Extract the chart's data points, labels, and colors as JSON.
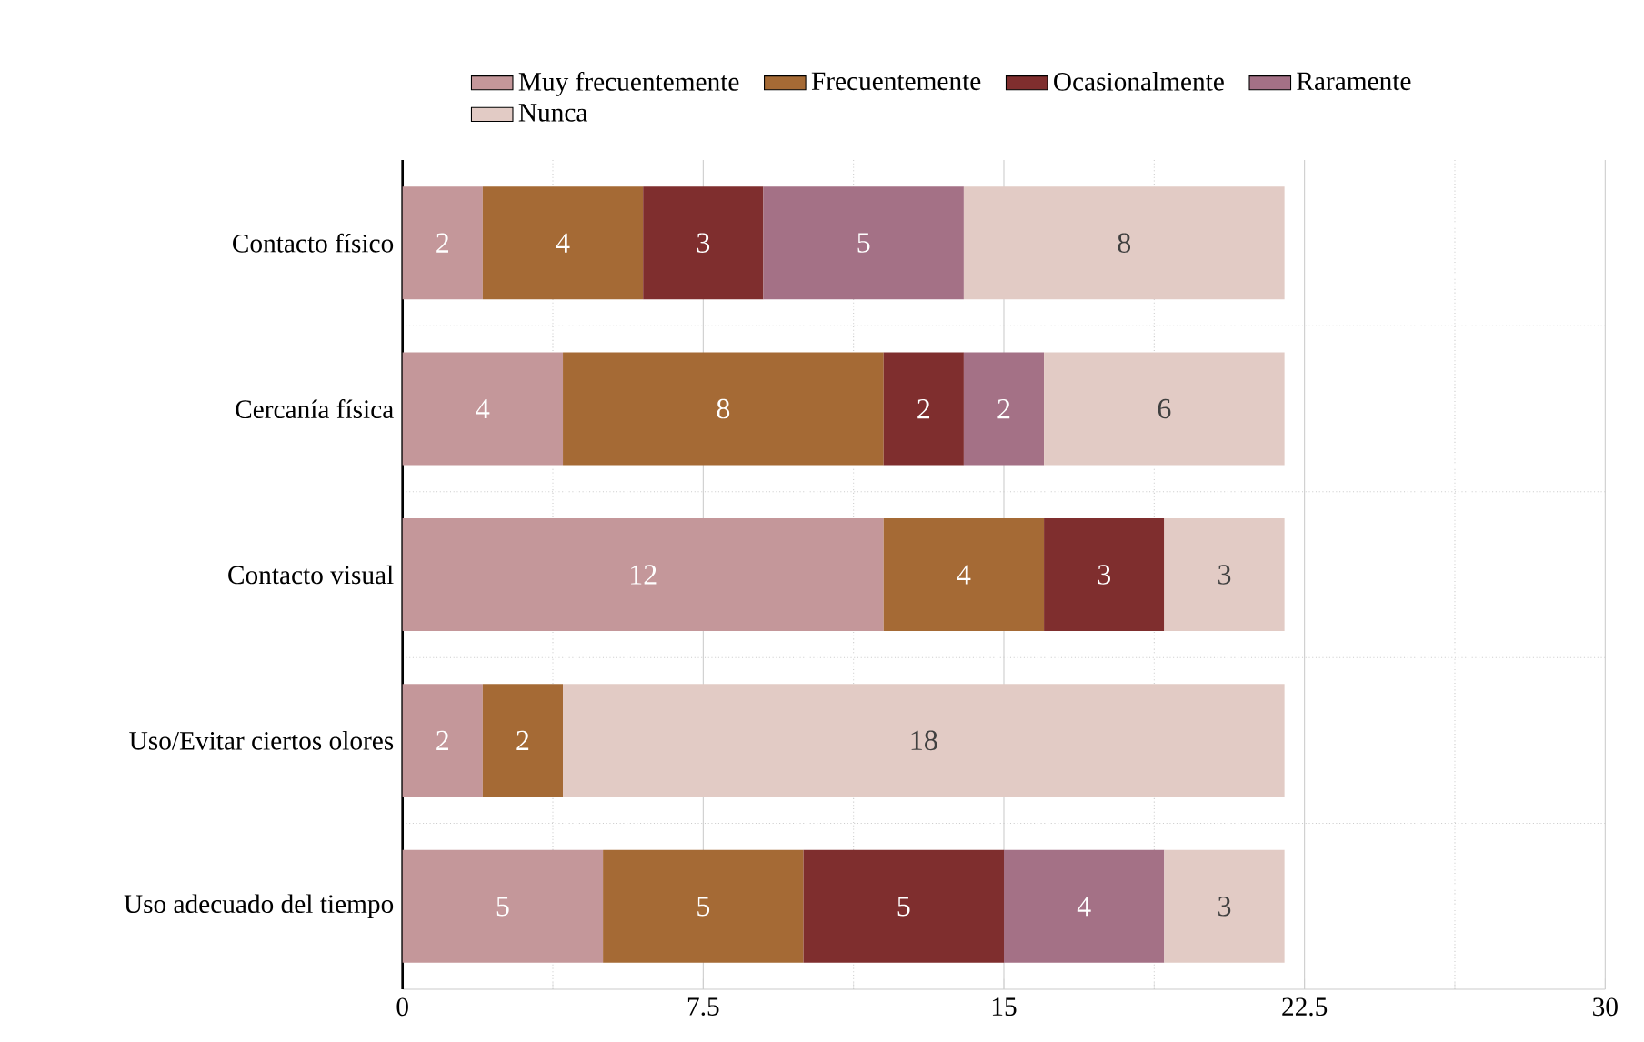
{
  "chart_data": {
    "type": "bar",
    "orientation": "horizontal",
    "stacked": true,
    "categories": [
      "Contacto físico",
      "Cercanía física",
      "Contacto visual",
      "Uso/Evitar ciertos olores",
      "Uso adecuado del tiempo"
    ],
    "series": [
      {
        "name": "Muy frecuentemente",
        "color": "#c4979a",
        "values": [
          2,
          4,
          12,
          2,
          5
        ]
      },
      {
        "name": "Frecuentemente",
        "color": "#a56a35",
        "values": [
          4,
          8,
          4,
          2,
          5
        ]
      },
      {
        "name": "Ocasionalmente",
        "color": "#7f2e2e",
        "values": [
          3,
          2,
          3,
          null,
          5
        ]
      },
      {
        "name": "Raramente",
        "color": "#a47186",
        "values": [
          5,
          2,
          null,
          null,
          4
        ]
      },
      {
        "name": "Nunca",
        "color": "#e2cbc5",
        "values": [
          8,
          6,
          3,
          18,
          3
        ]
      }
    ],
    "xlim": [
      0,
      30
    ],
    "xticks": [
      0,
      7.5,
      15,
      22.5,
      30
    ],
    "data_labels": true,
    "grid": true,
    "legend": "top"
  }
}
